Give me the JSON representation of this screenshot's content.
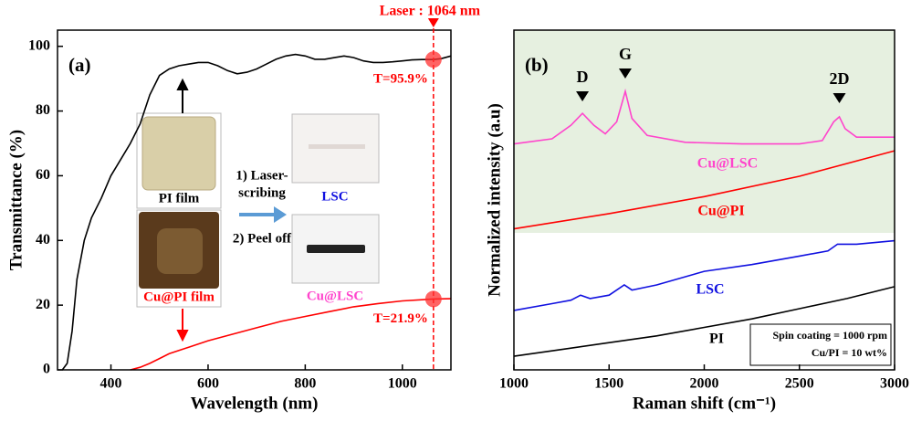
{
  "chart_data": [
    {
      "type": "line",
      "title": "(a)",
      "xlabel": "Wavelength (nm)",
      "ylabel": "Transmittance (%)",
      "xlim": [
        290,
        1100
      ],
      "ylim": [
        0,
        105
      ],
      "xticks": [
        400,
        600,
        800,
        1000
      ],
      "yticks": [
        0,
        20,
        40,
        60,
        80,
        100
      ],
      "series": [
        {
          "name": "PI film",
          "color": "#000000",
          "x": [
            300,
            310,
            320,
            330,
            345,
            360,
            380,
            400,
            420,
            440,
            460,
            480,
            500,
            520,
            540,
            560,
            580,
            600,
            620,
            640,
            660,
            680,
            700,
            720,
            740,
            760,
            780,
            800,
            820,
            840,
            860,
            880,
            900,
            920,
            940,
            960,
            980,
            1000,
            1020,
            1040,
            1064,
            1080,
            1100
          ],
          "values": [
            0,
            2,
            12,
            28,
            40,
            47,
            53,
            60,
            65,
            70,
            76,
            85,
            91,
            93,
            94,
            94.5,
            95,
            95,
            94,
            92.5,
            91.5,
            92,
            93,
            94.5,
            96,
            97,
            97.5,
            97,
            96,
            96,
            96.5,
            97,
            96.5,
            95.5,
            95,
            95,
            95.2,
            95.5,
            95.8,
            95.9,
            95.9,
            96.2,
            97
          ]
        },
        {
          "name": "Cu@PI film",
          "color": "#ff0000",
          "x": [
            440,
            460,
            480,
            500,
            520,
            560,
            600,
            650,
            700,
            750,
            800,
            850,
            900,
            950,
            1000,
            1064,
            1100
          ],
          "values": [
            0,
            0.8,
            2,
            3.5,
            5,
            7,
            9,
            11,
            13,
            15,
            16.5,
            18,
            19.5,
            20.5,
            21.3,
            21.9,
            22
          ]
        }
      ],
      "laser": {
        "x": 1064,
        "label": "Laser : 1064 nm",
        "color": "#ff0000"
      },
      "markers": [
        {
          "x": 1064,
          "y": 95.9,
          "label": "T=95.9%"
        },
        {
          "x": 1064,
          "y": 21.9,
          "label": "T=21.9%"
        }
      ],
      "inset_labels": [
        {
          "text": "PI film",
          "color": "#000000"
        },
        {
          "text": "Cu@PI film",
          "color": "#ff0000"
        },
        {
          "text": "1) Laser-",
          "color": "#000000"
        },
        {
          "text": "scribing",
          "color": "#000000"
        },
        {
          "text": "LSC",
          "color": "#1010e0"
        },
        {
          "text": "2) Peel off",
          "color": "#000000"
        },
        {
          "text": "Cu@LSC",
          "color": "#ff44cc"
        }
      ]
    },
    {
      "type": "line",
      "title": "(b)",
      "xlabel": "Raman shift (cm⁻¹)",
      "ylabel": "Normalized intensity (a.u)",
      "xlim": [
        1000,
        3000
      ],
      "ylim": [
        0,
        10
      ],
      "xticks": [
        1000,
        1500,
        2000,
        2500,
        3000
      ],
      "series": [
        {
          "name": "Cu@LSC",
          "color": "#ff44cc",
          "x": [
            1000,
            1200,
            1300,
            1360,
            1420,
            1480,
            1540,
            1585,
            1620,
            1700,
            1900,
            2200,
            2500,
            2620,
            2680,
            2710,
            2740,
            2800,
            3000
          ],
          "values": [
            6.65,
            6.8,
            7.2,
            7.55,
            7.2,
            6.95,
            7.3,
            8.2,
            7.4,
            6.9,
            6.7,
            6.65,
            6.65,
            6.75,
            7.3,
            7.45,
            7.1,
            6.85,
            6.85
          ]
        },
        {
          "name": "Cu@PI",
          "color": "#ff0000",
          "x": [
            1000,
            1500,
            2000,
            2500,
            3000
          ],
          "values": [
            4.15,
            4.6,
            5.1,
            5.7,
            6.45
          ]
        },
        {
          "name": "LSC",
          "color": "#1010e0",
          "x": [
            1000,
            1200,
            1300,
            1350,
            1400,
            1500,
            1580,
            1620,
            1750,
            2000,
            2250,
            2500,
            2650,
            2700,
            2800,
            3000
          ],
          "values": [
            1.75,
            1.95,
            2.05,
            2.2,
            2.1,
            2.2,
            2.5,
            2.35,
            2.5,
            2.9,
            3.1,
            3.35,
            3.5,
            3.7,
            3.7,
            3.8
          ]
        },
        {
          "name": "PI",
          "color": "#000000",
          "x": [
            1000,
            1250,
            1500,
            1750,
            2000,
            2250,
            2500,
            2750,
            3000
          ],
          "values": [
            0.4,
            0.6,
            0.8,
            1.0,
            1.25,
            1.5,
            1.8,
            2.1,
            2.45
          ]
        }
      ],
      "peaks": [
        {
          "label": "D",
          "x": 1360
        },
        {
          "label": "G",
          "x": 1585
        },
        {
          "label": "2D",
          "x": 2710
        }
      ],
      "notes": [
        "Spin coating = 1000 rpm",
        "Cu/PI = 10 wt%"
      ]
    }
  ]
}
